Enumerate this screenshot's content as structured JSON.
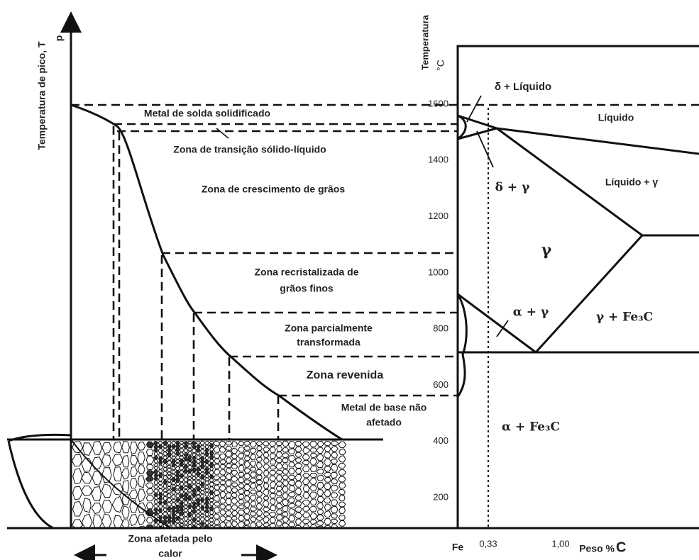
{
  "left_axis": {
    "label": "Temperatura de pico, T",
    "subscript": "p"
  },
  "zones": {
    "weld_metal": "Metal de solda solidificado",
    "transition": "Zona de transição sólido-líquido",
    "grain_growth": "Zona de crescimento de grãos",
    "recrystallized": [
      "Zona recristalizada de",
      "grãos finos"
    ],
    "partial": [
      "Zona parcialmente",
      "transformada"
    ],
    "tempered": "Zona revenida",
    "base_metal": [
      "Metal de base não",
      "afetado"
    ],
    "haz": [
      "Zona afetada pelo",
      "calor"
    ]
  },
  "phase_diagram": {
    "axis_label": "Temperatura",
    "unit": "°C",
    "temperature_ticks": [
      1600,
      1400,
      1200,
      1000,
      800,
      600,
      400,
      200
    ],
    "x_labels": [
      "Fe",
      "0,33",
      "1,00"
    ],
    "x_axis_label": "Peso %",
    "x_axis_symbol": "C",
    "phases": {
      "delta_liquid": "δ + Líquido",
      "liquid": "Líquido",
      "delta_gamma": "δ + γ",
      "liquid_gamma": "Líquido + γ",
      "gamma": "γ",
      "alpha_gamma": "α + γ",
      "gamma_fe3c": "γ + Fe₃C",
      "alpha_fe3c": "α + Fe₃C"
    }
  }
}
